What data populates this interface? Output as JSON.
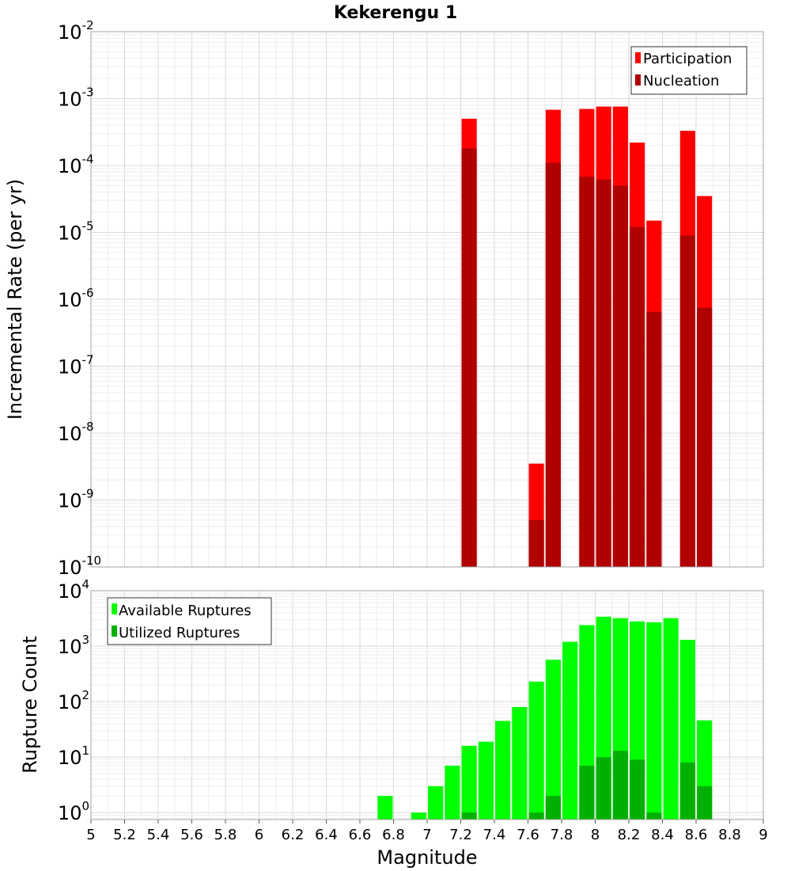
{
  "chart_data": [
    {
      "type": "bar",
      "title": "Kekerengu 1",
      "xlabel": "",
      "ylabel": "Incremental Rate (per yr)",
      "yscale": "log",
      "xlim": [
        5,
        9
      ],
      "ylim": [
        1e-10,
        0.01
      ],
      "y_tick_exponents": [
        -10,
        -9,
        -8,
        -7,
        -6,
        -5,
        -4,
        -3,
        -2
      ],
      "grid": true,
      "legend_position": "top-right",
      "bar_width": 0.09,
      "colors": {
        "Participation": "#ff0000",
        "Nucleation": "#b00000"
      },
      "x": [
        7.25,
        7.65,
        7.75,
        7.95,
        8.05,
        8.15,
        8.25,
        8.35,
        8.55,
        8.65
      ],
      "series": [
        {
          "name": "Participation",
          "values": [
            0.0005,
            3.5e-09,
            0.00068,
            0.0007,
            0.00076,
            0.00076,
            0.00022,
            1.5e-05,
            0.00033,
            3.5e-05
          ]
        },
        {
          "name": "Nucleation",
          "values": [
            0.00018,
            5e-10,
            0.00011,
            6.8e-05,
            6.2e-05,
            5e-05,
            1.2e-05,
            6.5e-07,
            9e-06,
            7.5e-07
          ]
        }
      ]
    },
    {
      "type": "bar",
      "title": "",
      "xlabel": "Magnitude",
      "ylabel": "Rupture Count",
      "yscale": "log",
      "xlim": [
        5,
        9
      ],
      "ylim": [
        0.75,
        10000.0
      ],
      "x_tick_labels": [
        "5",
        "5.2",
        "5.4",
        "5.6",
        "5.8",
        "6",
        "6.2",
        "6.4",
        "6.6",
        "6.8",
        "7",
        "7.2",
        "7.4",
        "7.6",
        "7.8",
        "8",
        "8.2",
        "8.4",
        "8.6",
        "8.8",
        "9"
      ],
      "y_tick_exponents": [
        0,
        1,
        2,
        3,
        4
      ],
      "grid": true,
      "legend_position": "top-left",
      "bar_width": 0.09,
      "colors": {
        "Available Ruptures": "#00ff00",
        "Utilized Ruptures": "#00b000"
      },
      "x": [
        6.75,
        6.95,
        7.05,
        7.15,
        7.25,
        7.35,
        7.45,
        7.55,
        7.65,
        7.75,
        7.85,
        7.95,
        8.05,
        8.15,
        8.25,
        8.35,
        8.45,
        8.55,
        8.65
      ],
      "series": [
        {
          "name": "Available Ruptures",
          "values": [
            2,
            1,
            3,
            7,
            16,
            19,
            45,
            80,
            230,
            570,
            1200,
            2400,
            3400,
            3200,
            2800,
            2700,
            3200,
            1300,
            46
          ]
        },
        {
          "name": "Utilized Ruptures",
          "values": [
            0,
            0,
            0,
            0,
            1,
            0,
            0,
            0,
            1,
            2,
            0,
            7,
            10,
            13,
            9,
            1,
            0,
            8,
            3
          ]
        }
      ]
    }
  ]
}
